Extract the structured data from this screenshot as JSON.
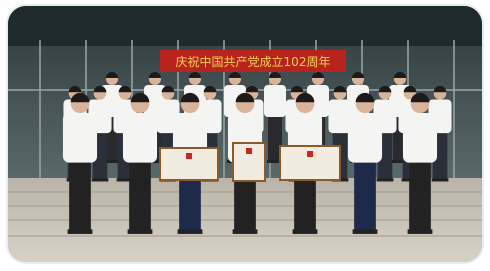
{
  "banner": {
    "text": "庆祝中国共产党成立102周年"
  }
}
